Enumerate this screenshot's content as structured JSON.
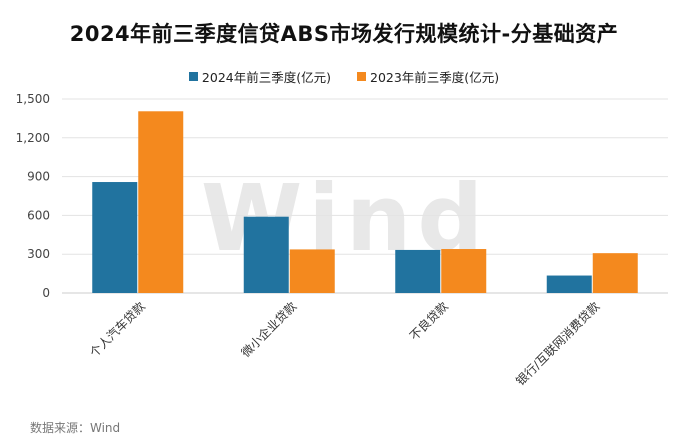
{
  "title": "2024年前三季度信贷ABS市场发行规模统计-分基础资产",
  "source": "数据来源：Wind",
  "watermark": "Wind",
  "colors": {
    "series1": "#21739f",
    "series2": "#f4891e",
    "grid": "#e3e3e3",
    "axis": "#cccccc",
    "watermark": "#e8e8e8"
  },
  "chart_data": {
    "type": "bar",
    "categories": [
      "个人汽车贷款",
      "微小企业贷款",
      "不良贷款",
      "银行/互联网消费贷款"
    ],
    "series": [
      {
        "name": "2024年前三季度(亿元)",
        "values": [
          858,
          590,
          333,
          135
        ]
      },
      {
        "name": "2023年前三季度(亿元)",
        "values": [
          1405,
          337,
          340,
          308
        ]
      }
    ],
    "yticks": [
      "0",
      "300",
      "600",
      "900",
      "1,200",
      "1,500"
    ],
    "ylim": [
      0,
      1500
    ],
    "grid": true,
    "legend_position": "top"
  }
}
